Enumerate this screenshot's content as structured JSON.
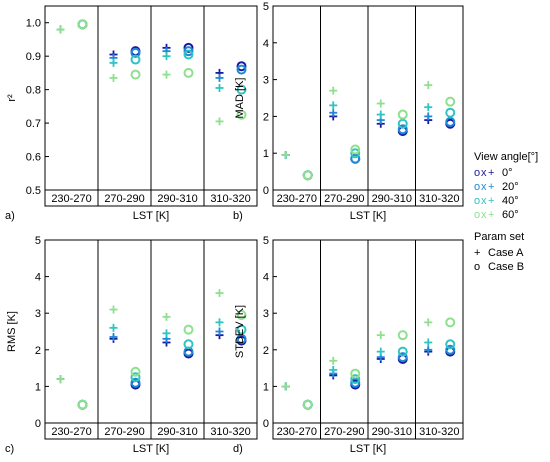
{
  "legend": {
    "view_title": "View angle[°]",
    "views": [
      {
        "label": "0°",
        "color": "#1a1aa6"
      },
      {
        "label": "20°",
        "color": "#1e8ad6"
      },
      {
        "label": "40°",
        "color": "#2ec4c4"
      },
      {
        "label": "60°",
        "color": "#8ee08e"
      }
    ],
    "param_title": "Param set",
    "params": [
      {
        "symbol": "+",
        "label": "Case A"
      },
      {
        "symbol": "o",
        "label": "Case B"
      }
    ]
  },
  "chart_data": [
    {
      "type": "scatter",
      "panel_label": "a)",
      "xlabel": "LST [K]",
      "ylabel": "r²",
      "ylim": [
        0.5,
        1.05
      ],
      "yticks": [
        0.5,
        0.6,
        0.7,
        0.8,
        0.9,
        1.0
      ],
      "categories": [
        "230-270",
        "270-290",
        "290-310",
        "310-320"
      ],
      "series": [
        {
          "view": "0°",
          "case": "A",
          "values": [
            0.98,
            0.905,
            0.925,
            0.85
          ]
        },
        {
          "view": "20°",
          "case": "A",
          "values": [
            0.98,
            0.895,
            0.915,
            0.835
          ]
        },
        {
          "view": "40°",
          "case": "A",
          "values": [
            0.98,
            0.88,
            0.9,
            0.805
          ]
        },
        {
          "view": "60°",
          "case": "A",
          "values": [
            0.98,
            0.835,
            0.845,
            0.705
          ]
        },
        {
          "view": "0°",
          "case": "B",
          "values": [
            0.995,
            0.915,
            0.925,
            0.87
          ]
        },
        {
          "view": "20°",
          "case": "B",
          "values": [
            0.995,
            0.91,
            0.915,
            0.86
          ]
        },
        {
          "view": "40°",
          "case": "B",
          "values": [
            0.995,
            0.89,
            0.905,
            0.8
          ]
        },
        {
          "view": "60°",
          "case": "B",
          "values": [
            0.995,
            0.845,
            0.85,
            0.725
          ]
        }
      ]
    },
    {
      "type": "scatter",
      "panel_label": "b)",
      "xlabel": "LST [K]",
      "ylabel": "MAD [K]",
      "ylim": [
        0,
        5
      ],
      "yticks": [
        0,
        1,
        2,
        3,
        4,
        5
      ],
      "categories": [
        "230-270",
        "270-290",
        "290-310",
        "310-320"
      ],
      "series": [
        {
          "view": "0°",
          "case": "A",
          "values": [
            0.95,
            2.0,
            1.8,
            1.9
          ]
        },
        {
          "view": "20°",
          "case": "A",
          "values": [
            0.95,
            2.1,
            1.9,
            2.0
          ]
        },
        {
          "view": "40°",
          "case": "A",
          "values": [
            0.95,
            2.3,
            2.05,
            2.25
          ]
        },
        {
          "view": "60°",
          "case": "A",
          "values": [
            0.95,
            2.7,
            2.35,
            2.85
          ]
        },
        {
          "view": "0°",
          "case": "B",
          "values": [
            0.4,
            0.85,
            1.6,
            1.8
          ]
        },
        {
          "view": "20°",
          "case": "B",
          "values": [
            0.4,
            0.85,
            1.65,
            1.85
          ]
        },
        {
          "view": "40°",
          "case": "B",
          "values": [
            0.4,
            1.0,
            1.8,
            2.1
          ]
        },
        {
          "view": "60°",
          "case": "B",
          "values": [
            0.4,
            1.1,
            2.05,
            2.4
          ]
        }
      ]
    },
    {
      "type": "scatter",
      "panel_label": "c)",
      "xlabel": "LST [K]",
      "ylabel": "RMS [K]",
      "ylim": [
        0,
        5
      ],
      "yticks": [
        0,
        1,
        2,
        3,
        4,
        5
      ],
      "categories": [
        "230-270",
        "270-290",
        "290-310",
        "310-320"
      ],
      "series": [
        {
          "view": "0°",
          "case": "A",
          "values": [
            1.2,
            2.3,
            2.2,
            2.4
          ]
        },
        {
          "view": "20°",
          "case": "A",
          "values": [
            1.2,
            2.35,
            2.3,
            2.5
          ]
        },
        {
          "view": "40°",
          "case": "A",
          "values": [
            1.2,
            2.6,
            2.45,
            2.75
          ]
        },
        {
          "view": "60°",
          "case": "A",
          "values": [
            1.2,
            3.1,
            2.9,
            3.55
          ]
        },
        {
          "view": "0°",
          "case": "B",
          "values": [
            0.5,
            1.05,
            1.9,
            2.25
          ]
        },
        {
          "view": "20°",
          "case": "B",
          "values": [
            0.5,
            1.1,
            1.95,
            2.3
          ]
        },
        {
          "view": "40°",
          "case": "B",
          "values": [
            0.5,
            1.25,
            2.15,
            2.55
          ]
        },
        {
          "view": "60°",
          "case": "B",
          "values": [
            0.5,
            1.4,
            2.55,
            2.95
          ]
        }
      ]
    },
    {
      "type": "scatter",
      "panel_label": "d)",
      "xlabel": "LST [K]",
      "ylabel": "STDEV [K]",
      "ylim": [
        0,
        5
      ],
      "yticks": [
        0,
        1,
        2,
        3,
        4,
        5
      ],
      "categories": [
        "230-270",
        "270-290",
        "290-310",
        "310-320"
      ],
      "series": [
        {
          "view": "0°",
          "case": "A",
          "values": [
            1.0,
            1.3,
            1.75,
            1.95
          ]
        },
        {
          "view": "20°",
          "case": "A",
          "values": [
            1.0,
            1.35,
            1.8,
            2.0
          ]
        },
        {
          "view": "40°",
          "case": "A",
          "values": [
            1.0,
            1.45,
            1.95,
            2.2
          ]
        },
        {
          "view": "60°",
          "case": "A",
          "values": [
            1.0,
            1.7,
            2.4,
            2.75
          ]
        },
        {
          "view": "0°",
          "case": "B",
          "values": [
            0.5,
            1.05,
            1.75,
            1.95
          ]
        },
        {
          "view": "20°",
          "case": "B",
          "values": [
            0.5,
            1.1,
            1.8,
            2.0
          ]
        },
        {
          "view": "40°",
          "case": "B",
          "values": [
            0.5,
            1.2,
            1.95,
            2.15
          ]
        },
        {
          "view": "60°",
          "case": "B",
          "values": [
            0.5,
            1.35,
            2.4,
            2.75
          ]
        }
      ]
    }
  ]
}
